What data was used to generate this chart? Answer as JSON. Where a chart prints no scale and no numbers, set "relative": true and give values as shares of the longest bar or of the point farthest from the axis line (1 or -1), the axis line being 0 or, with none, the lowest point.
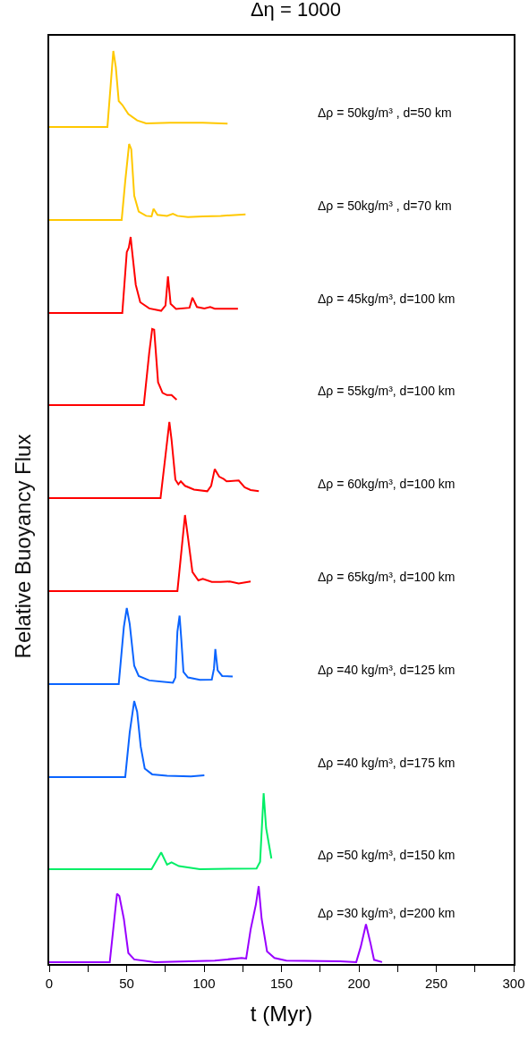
{
  "chart_data": [
    {
      "type": "line",
      "relative": true,
      "title": "Δη = 1000",
      "xlim": [
        0,
        300
      ],
      "tick_labels": false,
      "x": [
        0,
        37.6,
        41.4,
        43.0,
        44.9,
        47.2,
        51.1,
        56.8,
        62.6,
        78,
        99.2,
        115.2
      ],
      "series": [
        {
          "name": "Δρ = 50kg/m³ , d=50 km",
          "color": "#ffc800",
          "values": [
            0,
            0,
            1,
            0.79,
            0.34,
            0.29,
            0.17,
            0.086,
            0.047,
            0.054,
            0.054,
            0.043
          ]
        }
      ]
    },
    {
      "type": "line",
      "relative": true,
      "xlim": [
        0,
        300
      ],
      "tick_labels": false,
      "x": [
        0,
        46.8,
        49.1,
        51.6,
        53.0,
        54.9,
        57.8,
        62.6,
        66.1,
        67.4,
        69.9,
        76.1,
        79.9,
        82.8,
        89.6,
        99.2,
        110.8,
        126.8
      ],
      "series": [
        {
          "name": "Δρ = 50kg/m³ , d=70 km",
          "color": "#ffc800",
          "values": [
            0,
            0,
            0.51,
            1,
            0.93,
            0.32,
            0.11,
            0.053,
            0.046,
            0.145,
            0.065,
            0.053,
            0.08,
            0.053,
            0.038,
            0.046,
            0.053,
            0.073
          ]
        }
      ]
    },
    {
      "type": "line",
      "relative": true,
      "xlim": [
        0,
        300
      ],
      "tick_labels": false,
      "x": [
        0,
        47.2,
        50.1,
        51.4,
        52.6,
        53.4,
        55.9,
        58.8,
        64.6,
        72.3,
        75.1,
        76.7,
        78.4,
        81.9,
        90.6,
        92.5,
        95.4,
        100.2,
        104.0,
        106.9,
        121.9
      ],
      "series": [
        {
          "name": "Δρ = 45kg/m³, d=100 km",
          "color": "#ff0000",
          "values": [
            0,
            0,
            0.8,
            0.86,
            1,
            0.84,
            0.37,
            0.14,
            0.059,
            0.027,
            0.098,
            0.48,
            0.12,
            0.051,
            0.067,
            0.2,
            0.078,
            0.059,
            0.078,
            0.055,
            0.055
          ]
        }
      ]
    },
    {
      "type": "line",
      "relative": true,
      "xlim": [
        0,
        300
      ],
      "tick_labels": false,
      "x": [
        0,
        61.1,
        64.6,
        66.5,
        67.8,
        70.3,
        73.2,
        76.1,
        79.0,
        82.3
      ],
      "series": [
        {
          "name": "Δρ = 55kg/m³, d=100 km",
          "color": "#ff0000",
          "values": [
            0,
            0,
            0.69,
            1,
            0.99,
            0.3,
            0.16,
            0.13,
            0.13,
            0.07
          ]
        }
      ]
    },
    {
      "type": "line",
      "relative": true,
      "xlim": [
        0,
        300
      ],
      "tick_labels": false,
      "x": [
        0,
        71.9,
        75.1,
        77.6,
        79.0,
        81.5,
        83.4,
        85.0,
        87.7,
        93.5,
        102.1,
        104.6,
        106.9,
        109.8,
        112.7,
        114.6,
        122.4,
        126.2,
        130.1,
        135.4
      ],
      "series": [
        {
          "name": "Δρ = 60kg/m³, d=100 km",
          "color": "#ff0000",
          "values": [
            0,
            0,
            0.56,
            1,
            0.77,
            0.24,
            0.18,
            0.22,
            0.16,
            0.11,
            0.089,
            0.16,
            0.38,
            0.28,
            0.25,
            0.22,
            0.23,
            0.14,
            0.105,
            0.089
          ]
        }
      ]
    },
    {
      "type": "line",
      "relative": true,
      "xlim": [
        0,
        300
      ],
      "tick_labels": false,
      "x": [
        0,
        82.8,
        85.7,
        87.7,
        89.6,
        92.5,
        96.3,
        99.2,
        105.0,
        110.8,
        116.6,
        122.4,
        130.1
      ],
      "ylabel": "Relative Buoyancy Flux",
      "series": [
        {
          "name": "Δρ = 65kg/m³, d=100 km",
          "color": "#ff0000",
          "values": [
            0,
            0,
            0.59,
            1,
            0.71,
            0.25,
            0.14,
            0.16,
            0.12,
            0.12,
            0.125,
            0.098,
            0.125
          ]
        }
      ]
    },
    {
      "type": "line",
      "relative": true,
      "xlim": [
        0,
        300
      ],
      "tick_labels": false,
      "x": [
        0,
        44.9,
        48.2,
        50.1,
        52.0,
        54.9,
        57.8,
        64.6,
        79.9,
        81.5,
        82.8,
        84.2,
        85.3,
        86.7,
        89.6,
        97.3,
        105.0,
        106.4,
        107.3,
        108.8,
        111.7,
        118.5
      ],
      "series": [
        {
          "name": "Δρ =40 kg/m³, d=125 km",
          "color": "#0a64ff",
          "values": [
            0,
            0,
            0.75,
            1,
            0.79,
            0.24,
            0.105,
            0.047,
            0.016,
            0.086,
            0.69,
            0.9,
            0.59,
            0.16,
            0.086,
            0.054,
            0.058,
            0.2,
            0.46,
            0.18,
            0.105,
            0.1
          ]
        }
      ]
    },
    {
      "type": "line",
      "relative": true,
      "xlim": [
        0,
        300
      ],
      "tick_labels": false,
      "x": [
        0,
        49.1,
        52.0,
        54.9,
        56.8,
        59.1,
        61.7,
        66.5,
        76.1,
        91.5,
        100.2
      ],
      "series": [
        {
          "name": "Δρ =40 kg/m³, d=175 km",
          "color": "#0a64ff",
          "values": [
            0,
            0,
            0.59,
            1,
            0.86,
            0.4,
            0.11,
            0.035,
            0.015,
            0.008,
            0.023
          ]
        }
      ]
    },
    {
      "type": "line",
      "relative": true,
      "xlim": [
        0,
        300
      ],
      "tick_labels": false,
      "x": [
        0,
        66.1,
        72.3,
        76.1,
        79.0,
        83.8,
        97.3,
        133.9,
        136.2,
        138.5,
        140.1,
        143.5
      ],
      "series": [
        {
          "name": "Δρ =50 kg/m³, d=150 km",
          "color": "#00ee66",
          "values": [
            0,
            0,
            0.22,
            0.058,
            0.089,
            0.039,
            0,
            0.008,
            0.097,
            1,
            0.54,
            0.14
          ]
        }
      ]
    },
    {
      "type": "line",
      "relative": true,
      "xlabel": "t (Myr)",
      "xlim": [
        0,
        300
      ],
      "tick_labels": "x",
      "xticks": [
        0,
        {
          "value": 25,
          "label": null
        },
        50,
        {
          "value": 75,
          "label": null
        },
        100,
        {
          "value": 125,
          "label": null
        },
        150,
        {
          "value": 175,
          "label": null
        },
        200,
        {
          "value": 225,
          "label": null
        },
        250,
        {
          "value": 275,
          "label": null
        },
        300
      ],
      "x": [
        0,
        39.1,
        43.8,
        45.3,
        48.2,
        51.1,
        54.9,
        68.4,
        106.9,
        124.3,
        127.2,
        130.1,
        133.5,
        135.3,
        137.2,
        140.7,
        145.5,
        153.2,
        188.0,
        198.3,
        201.2,
        204.6,
        207.5,
        209.8,
        215.0
      ],
      "series": [
        {
          "name": "Δρ =30 kg/m³, d=200 km",
          "color": "#9900ff",
          "values": [
            0,
            0,
            0.9,
            0.87,
            0.57,
            0.12,
            0.035,
            0,
            0.019,
            0.054,
            0.046,
            0.43,
            0.76,
            1,
            0.57,
            0.14,
            0.054,
            0.019,
            0.01,
            0,
            0.2,
            0.5,
            0.25,
            0.03,
            0
          ]
        }
      ]
    }
  ]
}
